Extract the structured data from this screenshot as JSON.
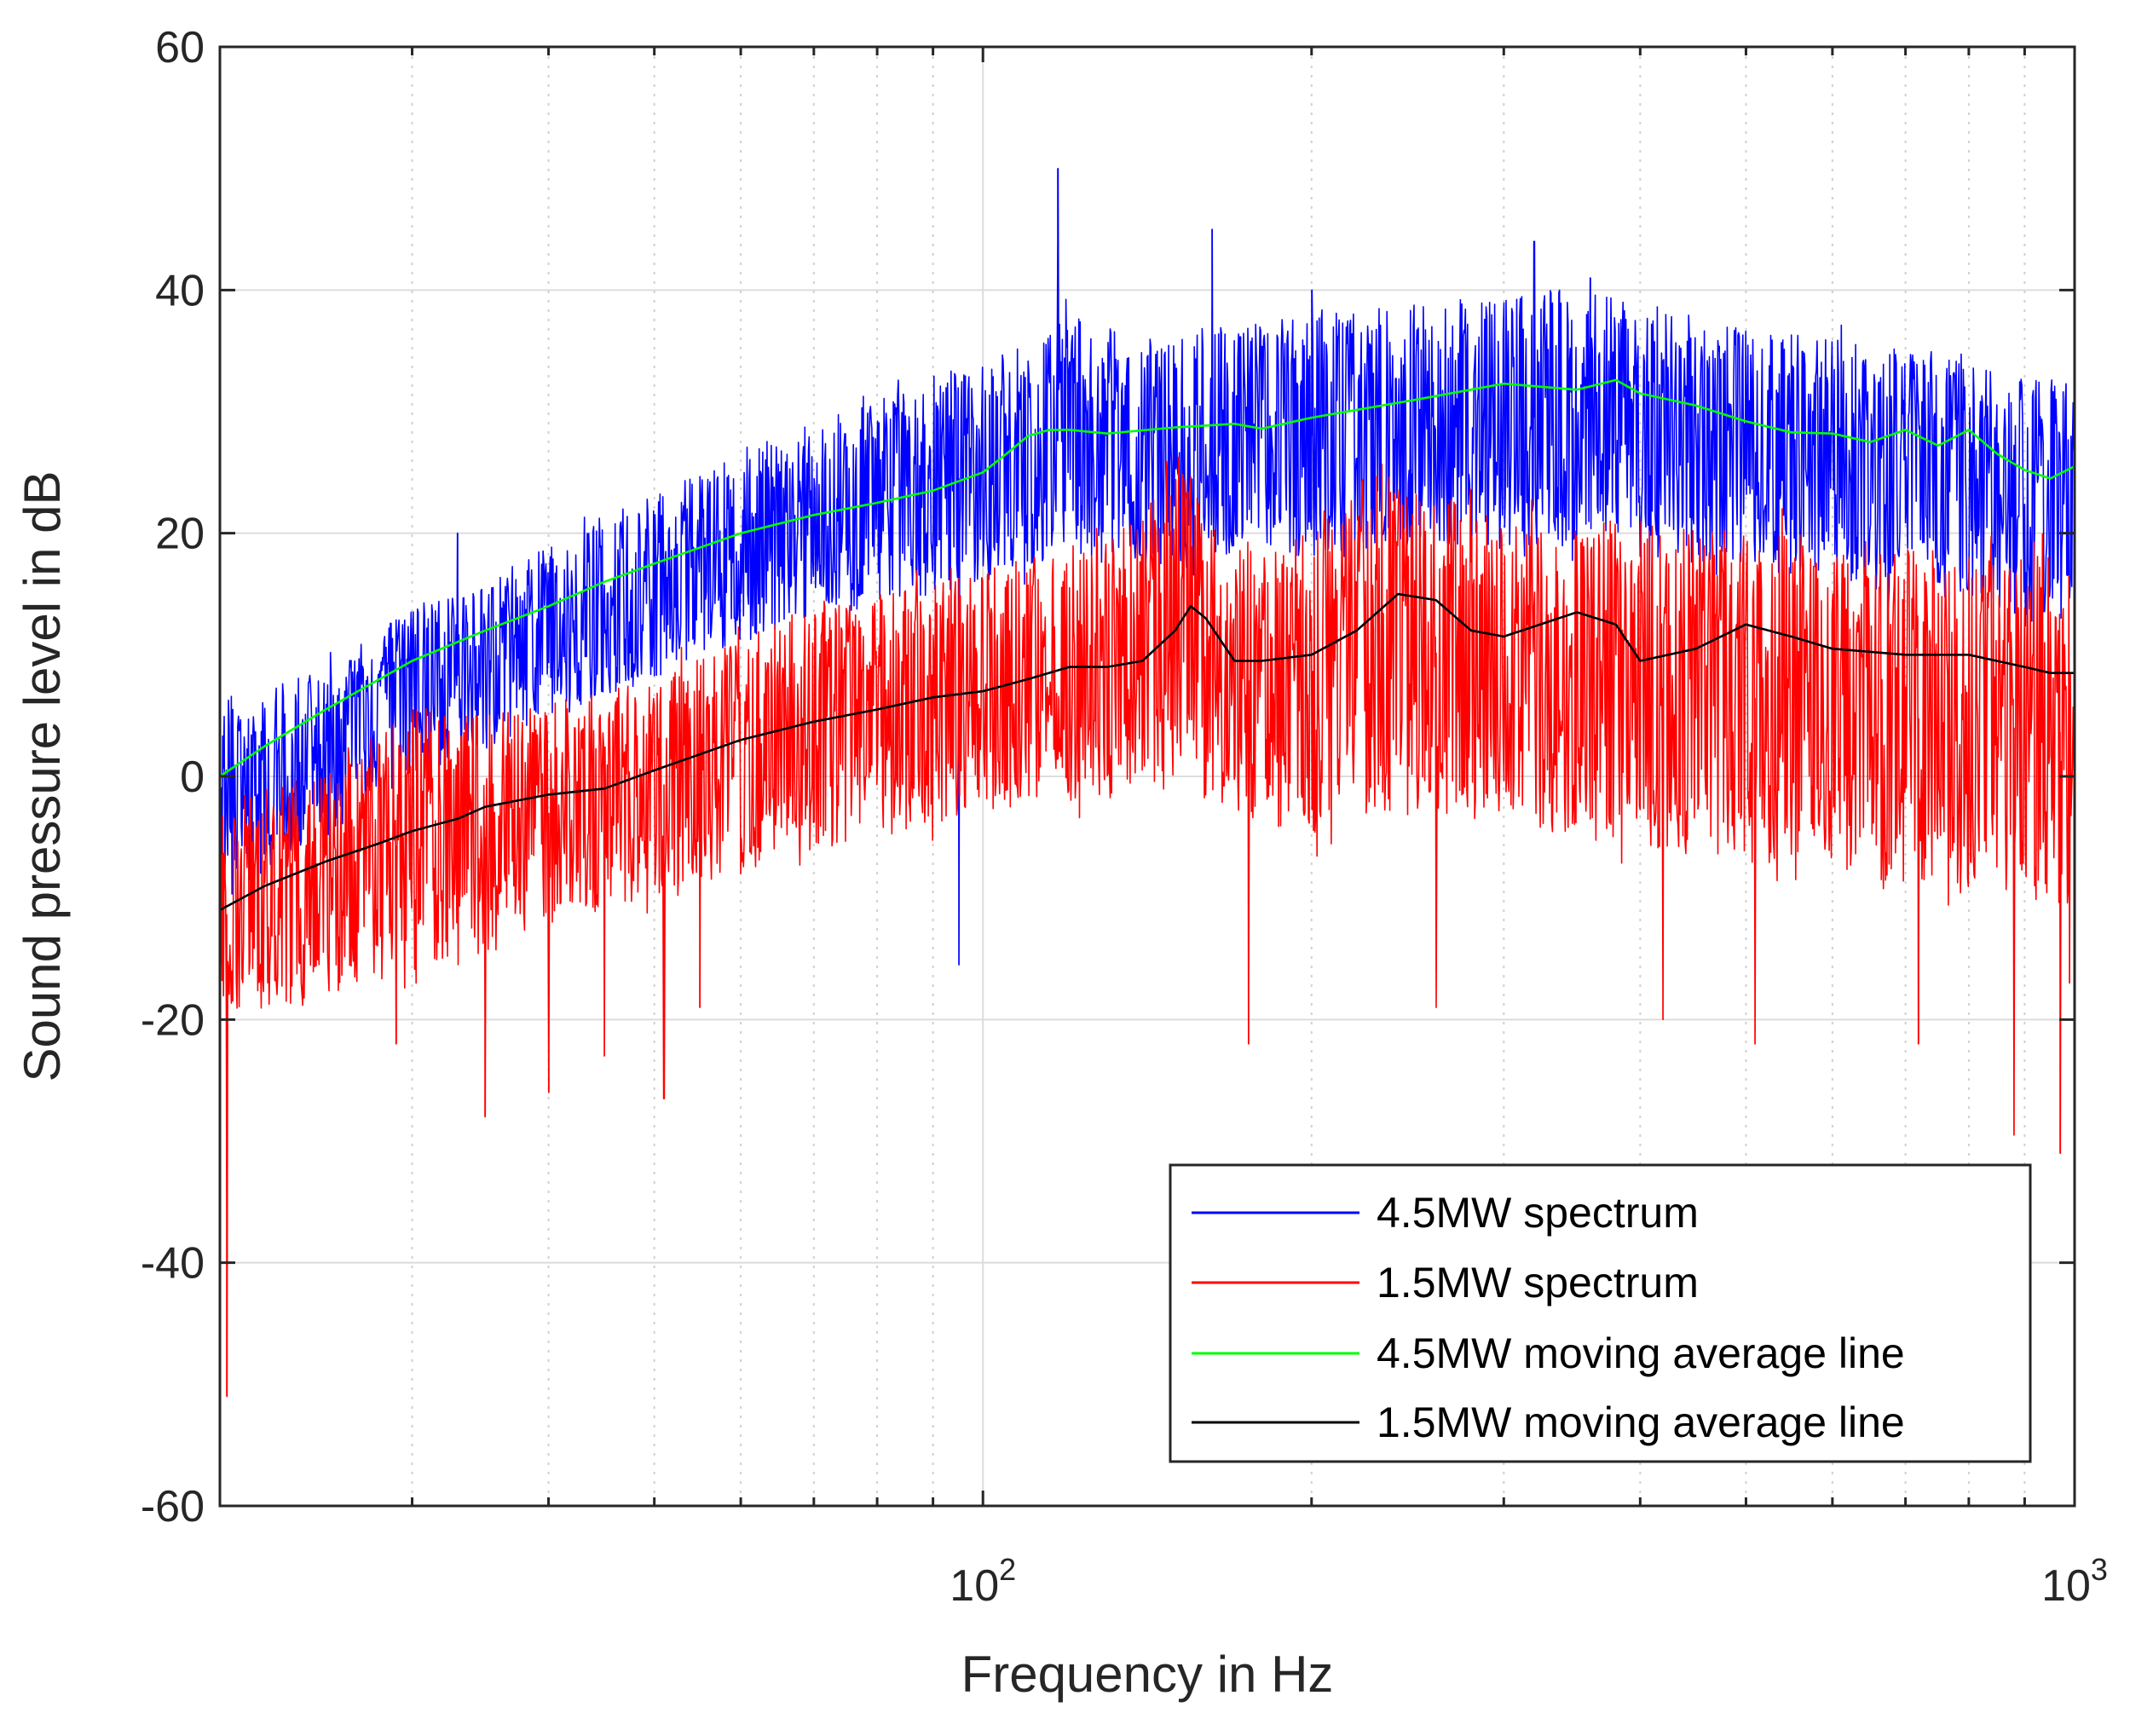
{
  "chart_data": {
    "type": "line",
    "title": "",
    "xlabel": "Frequency in Hz",
    "ylabel": "Sound pressure level in dB",
    "xscale": "log",
    "xlim": [
      20,
      1000
    ],
    "ylim": [
      -60,
      60
    ],
    "yticks": [
      -60,
      -40,
      -20,
      0,
      20,
      40,
      60
    ],
    "ytick_labels": [
      "-60",
      "-40",
      "-20",
      "0",
      "20",
      "40",
      "60"
    ],
    "xticks": [
      100,
      1000
    ],
    "xtick_labels": [
      {
        "base": "10",
        "exp": "2"
      },
      {
        "base": "10",
        "exp": "3"
      }
    ],
    "grid": true,
    "legend_position": "lower-right",
    "series": [
      {
        "name": "4.5MW spectrum",
        "color": "#0000ff",
        "kind": "noisy",
        "x": [
          20,
          25,
          30,
          35,
          40,
          50,
          60,
          70,
          80,
          90,
          100,
          110,
          120,
          140,
          160,
          200,
          250,
          300,
          350,
          400,
          500,
          600,
          700,
          800,
          900,
          1000
        ],
        "upper": [
          6,
          9,
          14,
          16,
          19,
          23,
          27,
          29,
          31,
          33,
          34,
          36,
          38,
          36,
          37,
          38,
          39,
          40,
          40,
          39,
          37,
          36,
          35,
          34,
          33,
          33
        ],
        "lower": [
          -10,
          -5,
          0,
          2,
          5,
          8,
          11,
          13,
          14,
          15,
          16,
          17,
          18,
          17,
          18,
          18,
          19,
          19,
          19,
          18,
          17,
          16,
          15,
          14,
          13,
          13
        ],
        "spikes": [
          [
            117,
            50
          ],
          [
            95,
            -15.5
          ],
          [
            162,
            45
          ],
          [
            200,
            40
          ],
          [
            320,
            44
          ],
          [
            360,
            41
          ],
          [
            33,
            20
          ]
        ]
      },
      {
        "name": "1.5MW spectrum",
        "color": "#ff0000",
        "kind": "noisy",
        "x": [
          20,
          25,
          30,
          35,
          40,
          50,
          60,
          70,
          80,
          90,
          100,
          120,
          140,
          150,
          160,
          170,
          200,
          230,
          250,
          300,
          350,
          400,
          500,
          600,
          700,
          800,
          900,
          1000
        ],
        "upper": [
          -3,
          0,
          6,
          5,
          6,
          8,
          12,
          14,
          15,
          16,
          17,
          19,
          21,
          28,
          22,
          19,
          20,
          26,
          24,
          22,
          21,
          21,
          20,
          20,
          19,
          18,
          18,
          18
        ],
        "lower": [
          -20,
          -18,
          -16,
          -15,
          -12,
          -10,
          -8,
          -6,
          -5,
          -4,
          -3,
          -2,
          -1,
          0,
          -2,
          -3,
          -5,
          -4,
          -3,
          -4,
          -5,
          -6,
          -7,
          -8,
          -9,
          -10,
          -10,
          -11
        ],
        "spikes": [
          [
            20.3,
            -51
          ],
          [
            29,
            -22
          ],
          [
            35,
            -28
          ],
          [
            40,
            -26
          ],
          [
            45,
            -23
          ],
          [
            51,
            -26.5
          ],
          [
            55,
            -19
          ],
          [
            175,
            -22
          ],
          [
            260,
            -19
          ],
          [
            420,
            -20
          ],
          [
            510,
            -22
          ],
          [
            720,
            -22
          ],
          [
            880,
            -29.5
          ],
          [
            970,
            -31
          ],
          [
            990,
            -17
          ]
        ]
      },
      {
        "name": "4.5MW moving average line",
        "color": "#00ff00",
        "kind": "line",
        "x": [
          20,
          22,
          25,
          28,
          30,
          35,
          40,
          45,
          50,
          60,
          70,
          80,
          90,
          100,
          105,
          110,
          115,
          120,
          130,
          150,
          170,
          180,
          200,
          250,
          300,
          350,
          380,
          400,
          450,
          500,
          550,
          600,
          650,
          700,
          750,
          800,
          850,
          900,
          950,
          1000
        ],
        "y": [
          0,
          2.5,
          5.5,
          8,
          9.5,
          12,
          14,
          16,
          17.5,
          20,
          21.5,
          22.5,
          23.5,
          25,
          26.5,
          28,
          28.5,
          28.5,
          28.2,
          28.7,
          29,
          28.6,
          29.5,
          31,
          32.3,
          31.8,
          32.6,
          31.5,
          30.5,
          29.2,
          28.3,
          28.2,
          27.5,
          28.5,
          27.2,
          28.5,
          26.5,
          25.2,
          24.5,
          25.5
        ]
      },
      {
        "name": "1.5MW moving average line",
        "color": "#000000",
        "kind": "line",
        "x": [
          20,
          22,
          25,
          28,
          30,
          33,
          35,
          40,
          45,
          50,
          60,
          70,
          80,
          90,
          100,
          110,
          120,
          130,
          140,
          150,
          155,
          160,
          170,
          180,
          200,
          220,
          240,
          260,
          280,
          300,
          350,
          380,
          400,
          450,
          500,
          550,
          600,
          700,
          800,
          900,
          950,
          1000
        ],
        "y": [
          -11,
          -9,
          -7,
          -5.5,
          -4.5,
          -3.5,
          -2.5,
          -1.5,
          -1,
          0.5,
          3,
          4.5,
          5.5,
          6.5,
          7,
          8,
          9,
          9,
          9.5,
          12,
          14,
          13,
          9.5,
          9.5,
          10,
          12,
          15,
          14.5,
          12,
          11.5,
          13.5,
          12.5,
          9.5,
          10.5,
          12.5,
          11.5,
          10.5,
          10,
          10,
          9,
          8.5,
          8.5
        ]
      }
    ]
  }
}
